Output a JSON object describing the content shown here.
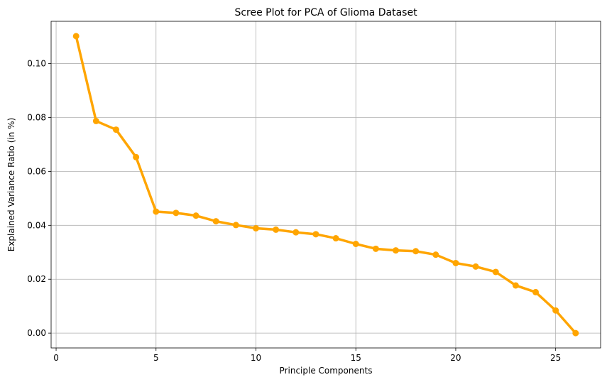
{
  "chart_data": {
    "type": "line",
    "title": "Scree Plot for PCA of Glioma Dataset",
    "xlabel": "Principle Components",
    "ylabel": "Explained Variance Ratio (in %)",
    "xlim": [
      -0.25,
      27.25
    ],
    "ylim": [
      -0.0055,
      0.1157
    ],
    "x_ticks": [
      0,
      5,
      10,
      15,
      20,
      25
    ],
    "y_ticks": [
      0.0,
      0.02,
      0.04,
      0.06,
      0.08,
      0.1
    ],
    "x_tick_labels": [
      "0",
      "5",
      "10",
      "15",
      "20",
      "25"
    ],
    "y_tick_labels": [
      "0.00",
      "0.02",
      "0.04",
      "0.06",
      "0.08",
      "0.10"
    ],
    "grid": true,
    "line_color": "#ffa500",
    "marker": "circle",
    "series": [
      {
        "x": [
          1,
          2,
          3,
          4,
          5,
          6,
          7,
          8,
          9,
          10,
          11,
          12,
          13,
          14,
          15,
          16,
          17,
          18,
          19,
          20,
          21,
          22,
          23,
          24,
          25,
          26
        ],
        "values": [
          0.1102,
          0.0787,
          0.0755,
          0.0653,
          0.0451,
          0.0446,
          0.0436,
          0.0415,
          0.0401,
          0.0389,
          0.0384,
          0.0374,
          0.0367,
          0.0352,
          0.0331,
          0.0313,
          0.0307,
          0.0304,
          0.0291,
          0.026,
          0.0247,
          0.0227,
          0.0177,
          0.0152,
          0.0084,
          0.0
        ]
      }
    ]
  }
}
